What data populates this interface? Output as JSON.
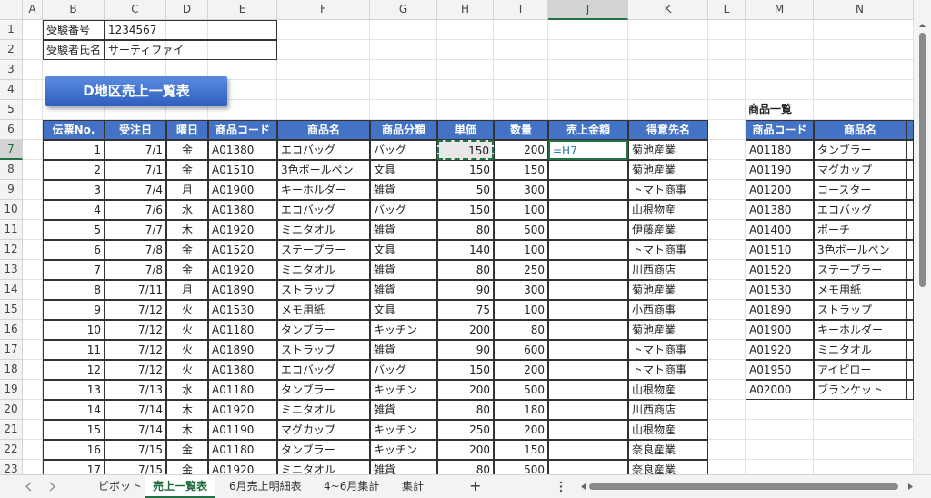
{
  "column_headers": [
    "A",
    "B",
    "C",
    "D",
    "E",
    "F",
    "G",
    "H",
    "I",
    "J",
    "K",
    "L",
    "M",
    "N"
  ],
  "row_headers": [
    1,
    2,
    3,
    4,
    5,
    6,
    7,
    8,
    9,
    10,
    11,
    12,
    13,
    14,
    15,
    16,
    17,
    18,
    19,
    20,
    21,
    22,
    23
  ],
  "info": {
    "rows": [
      [
        "受験番号",
        "1234567"
      ],
      [
        "受験者氏名",
        "サーティファイ"
      ]
    ]
  },
  "title_button": "D地区売上一覧表",
  "sales_table": {
    "header": [
      "伝票No.",
      "受注日",
      "曜日",
      "商品コード",
      "商品名",
      "商品分類",
      "単価",
      "数量",
      "売上金額",
      "得意先名"
    ],
    "rows": [
      {
        "no": 1,
        "date": "7/1",
        "day": "金",
        "code": "A01380",
        "name": "エコバッグ",
        "category": "バッグ",
        "price": 150,
        "qty": 200,
        "amount": "=H7",
        "customer": "菊池産業"
      },
      {
        "no": 2,
        "date": "7/1",
        "day": "金",
        "code": "A01510",
        "name": "3色ボールペン",
        "category": "文具",
        "price": 150,
        "qty": 150,
        "customer": "菊池産業"
      },
      {
        "no": 3,
        "date": "7/4",
        "day": "月",
        "code": "A01900",
        "name": "キーホルダー",
        "category": "雑貨",
        "price": 50,
        "qty": 300,
        "customer": "トマト商事"
      },
      {
        "no": 4,
        "date": "7/6",
        "day": "水",
        "code": "A01380",
        "name": "エコバッグ",
        "category": "バッグ",
        "price": 150,
        "qty": 100,
        "customer": "山根物産"
      },
      {
        "no": 5,
        "date": "7/7",
        "day": "木",
        "code": "A01920",
        "name": "ミニタオル",
        "category": "雑貨",
        "price": 80,
        "qty": 500,
        "customer": "伊藤産業"
      },
      {
        "no": 6,
        "date": "7/8",
        "day": "金",
        "code": "A01520",
        "name": "ステープラー",
        "category": "文具",
        "price": 140,
        "qty": 100,
        "customer": "トマト商事"
      },
      {
        "no": 7,
        "date": "7/8",
        "day": "金",
        "code": "A01920",
        "name": "ミニタオル",
        "category": "雑貨",
        "price": 80,
        "qty": 250,
        "customer": "川西商店"
      },
      {
        "no": 8,
        "date": "7/11",
        "day": "月",
        "code": "A01890",
        "name": "ストラップ",
        "category": "雑貨",
        "price": 90,
        "qty": 300,
        "customer": "菊池産業"
      },
      {
        "no": 9,
        "date": "7/12",
        "day": "火",
        "code": "A01530",
        "name": "メモ用紙",
        "category": "文具",
        "price": 75,
        "qty": 100,
        "customer": "小西商事"
      },
      {
        "no": 10,
        "date": "7/12",
        "day": "火",
        "code": "A01180",
        "name": "タンブラー",
        "category": "キッチン",
        "price": 200,
        "qty": 80,
        "customer": "菊池産業"
      },
      {
        "no": 11,
        "date": "7/12",
        "day": "火",
        "code": "A01890",
        "name": "ストラップ",
        "category": "雑貨",
        "price": 90,
        "qty": 600,
        "customer": "トマト商事"
      },
      {
        "no": 12,
        "date": "7/12",
        "day": "火",
        "code": "A01380",
        "name": "エコバッグ",
        "category": "バッグ",
        "price": 150,
        "qty": 200,
        "customer": "トマト商事"
      },
      {
        "no": 13,
        "date": "7/13",
        "day": "水",
        "code": "A01180",
        "name": "タンブラー",
        "category": "キッチン",
        "price": 200,
        "qty": 500,
        "customer": "山根物産"
      },
      {
        "no": 14,
        "date": "7/14",
        "day": "木",
        "code": "A01920",
        "name": "ミニタオル",
        "category": "雑貨",
        "price": 80,
        "qty": 180,
        "customer": "川西商店"
      },
      {
        "no": 15,
        "date": "7/14",
        "day": "木",
        "code": "A01190",
        "name": "マグカップ",
        "category": "キッチン",
        "price": 250,
        "qty": 200,
        "customer": "山根物産"
      },
      {
        "no": 16,
        "date": "7/15",
        "day": "金",
        "code": "A01180",
        "name": "タンブラー",
        "category": "キッチン",
        "price": 200,
        "qty": 150,
        "customer": "奈良産業"
      },
      {
        "no": 17,
        "date": "7/15",
        "day": "金",
        "code": "A01920",
        "name": "ミニタオル",
        "category": "雑貨",
        "price": 80,
        "qty": 500,
        "customer": "奈良産業"
      }
    ]
  },
  "product_list": {
    "title": "商品一覧",
    "header": [
      "商品コード",
      "商品名"
    ],
    "rows": [
      [
        "A01180",
        "タンブラー"
      ],
      [
        "A01190",
        "マグカップ"
      ],
      [
        "A01200",
        "コースター"
      ],
      [
        "A01380",
        "エコバッグ"
      ],
      [
        "A01400",
        "ポーチ"
      ],
      [
        "A01510",
        "3色ボールペン"
      ],
      [
        "A01520",
        "ステープラー"
      ],
      [
        "A01530",
        "メモ用紙"
      ],
      [
        "A01890",
        "ストラップ"
      ],
      [
        "A01900",
        "キーホルダー"
      ],
      [
        "A01920",
        "ミニタオル"
      ],
      [
        "A01950",
        "アイピロー"
      ],
      [
        "A02000",
        "ブランケット"
      ]
    ]
  },
  "sheet_tabs": [
    "ピボット",
    "売上一覧表",
    "6月売上明細表",
    "4~6月集計",
    "集計"
  ],
  "add_sheet": "+"
}
